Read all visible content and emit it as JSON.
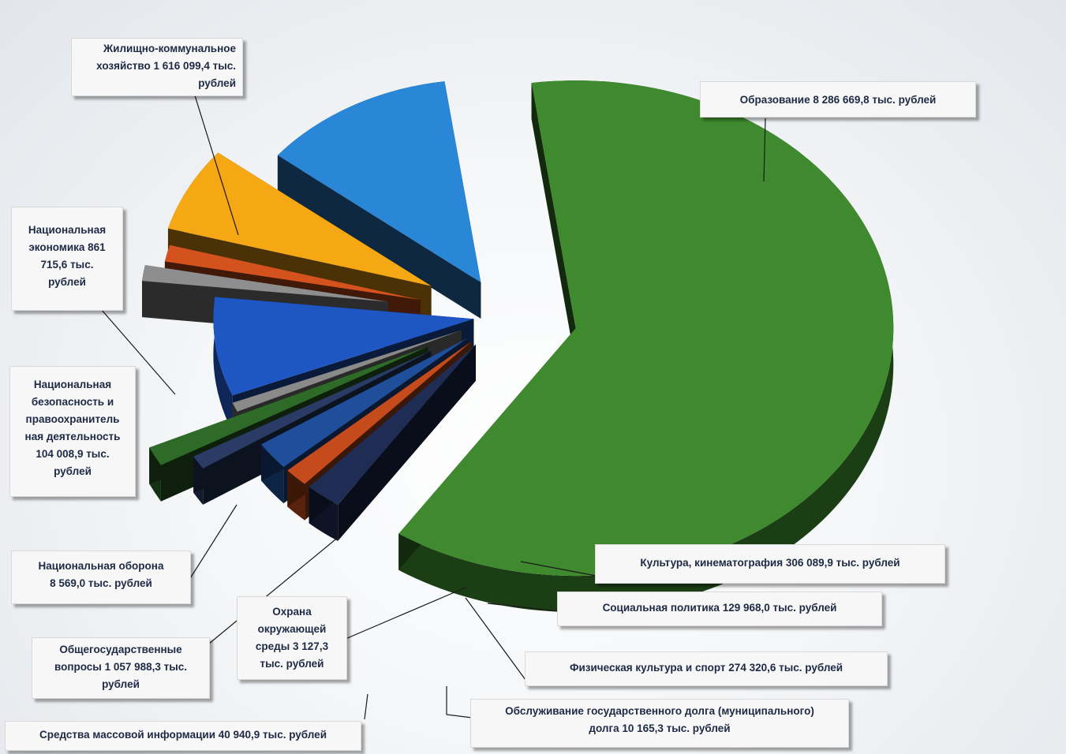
{
  "chart_data": {
    "type": "pie",
    "unit": "тыс. рублей",
    "slices": [
      {
        "name": "Образование",
        "value": 8286669.8,
        "color": "#3f8a2e",
        "label": "Образование 8 286 669,8 тыс. рублей"
      },
      {
        "name": "Культура, кинематография",
        "value": 306089.9,
        "color": "#1f2d55",
        "label": "Культура, кинематография 306 089,9 тыс. рублей"
      },
      {
        "name": "Социальная политика",
        "value": 129968.0,
        "color": "#c64b1c",
        "label": "Социальная политика 129 968,0 тыс. рублей"
      },
      {
        "name": "Физическая культура и спорт",
        "value": 274320.6,
        "color": "#1f4f9a",
        "label": "Физическая культура и спорт 274 320,6 тыс. рублей"
      },
      {
        "name": "Обслуживание государственного долга (муниципального) долга",
        "value": 10165.3,
        "color": "#2a3c66",
        "label": "Обслуживание государственного долга (муниципального) долга 10 165,3 тыс. рублей"
      },
      {
        "name": "Средства массовой информации",
        "value": 40940.9,
        "color": "#2f6b28",
        "label": "Средства массовой информации 40 940,9 тыс. рублей"
      },
      {
        "name": "Охрана окружающей среды",
        "value": 3127.3,
        "color": "#8a8a8a",
        "label": "Охрана окружающей среды 3 127,3 тыс. рублей"
      },
      {
        "name": "Общегосударственные вопросы",
        "value": 1057988.3,
        "color": "#1e57c4",
        "label": "Общегосударственные вопросы 1 057 988,3 тыс. рублей"
      },
      {
        "name": "Национальная оборона",
        "value": 8569.0,
        "color": "#8e8e8e",
        "label": "Национальная оборона 8 569,0 тыс. рублей"
      },
      {
        "name": "Национальная безопасность и правоохранительная деятельность",
        "value": 104008.9,
        "color": "#d4521d",
        "label": "Национальная безопасность и правоохранительная деятельность 104 008,9 тыс. рублей"
      },
      {
        "name": "Национальная экономика",
        "value": 861715.6,
        "color": "#f5a714",
        "label": "Национальная экономика 861 715,6 тыс. рублей"
      },
      {
        "name": "Жилищно-коммунальное хозяйство",
        "value": 1616099.4,
        "color": "#2a86d6",
        "label": "Жилищно-коммунальное хозяйство 1 616 099,4 тыс. рублей"
      }
    ]
  },
  "labels": {
    "obrazovanie": "Образование 8 286 669,8 тыс. рублей",
    "zhkh_1": "Жилищно-коммунальное",
    "zhkh_2": "хозяйство 1 616 099,4 тыс.",
    "zhkh_3": "рублей",
    "nacekon_1": "Национальная",
    "nacekon_2": "экономика 861",
    "nacekon_3": "715,6 тыс.",
    "nacekon_4": "рублей",
    "nacbez_1": "Национальная",
    "nacbez_2": "безопасность и",
    "nacbez_3": "правоохранитель",
    "nacbez_4": "ная деятельность",
    "nacbez_5": "104 008,9 тыс.",
    "nacbez_6": "рублей",
    "nacob_1": "Национальная оборона",
    "nacob_2": "8 569,0 тыс. рублей",
    "obshch_1": "Общегосударственные",
    "obshch_2": "вопросы 1 057 988,3 тыс.",
    "obshch_3": "рублей",
    "ohrana_1": "Охрана",
    "ohrana_2": "окружающей",
    "ohrana_3": "среды 3 127,3",
    "ohrana_4": "тыс. рублей",
    "smi": "Средства массовой информации 40 940,9 тыс. рублей",
    "kultura": "Культура, кинематография 306 089,9 тыс. рублей",
    "socpol": "Социальная политика 129 968,0 тыс. рублей",
    "fizkult": "Физическая культура и спорт 274 320,6 тыс. рублей",
    "dolg_1": "Обслуживание государственного долга (муниципального)",
    "dolg_2": "долга 10 165,3 тыс. рублей"
  }
}
